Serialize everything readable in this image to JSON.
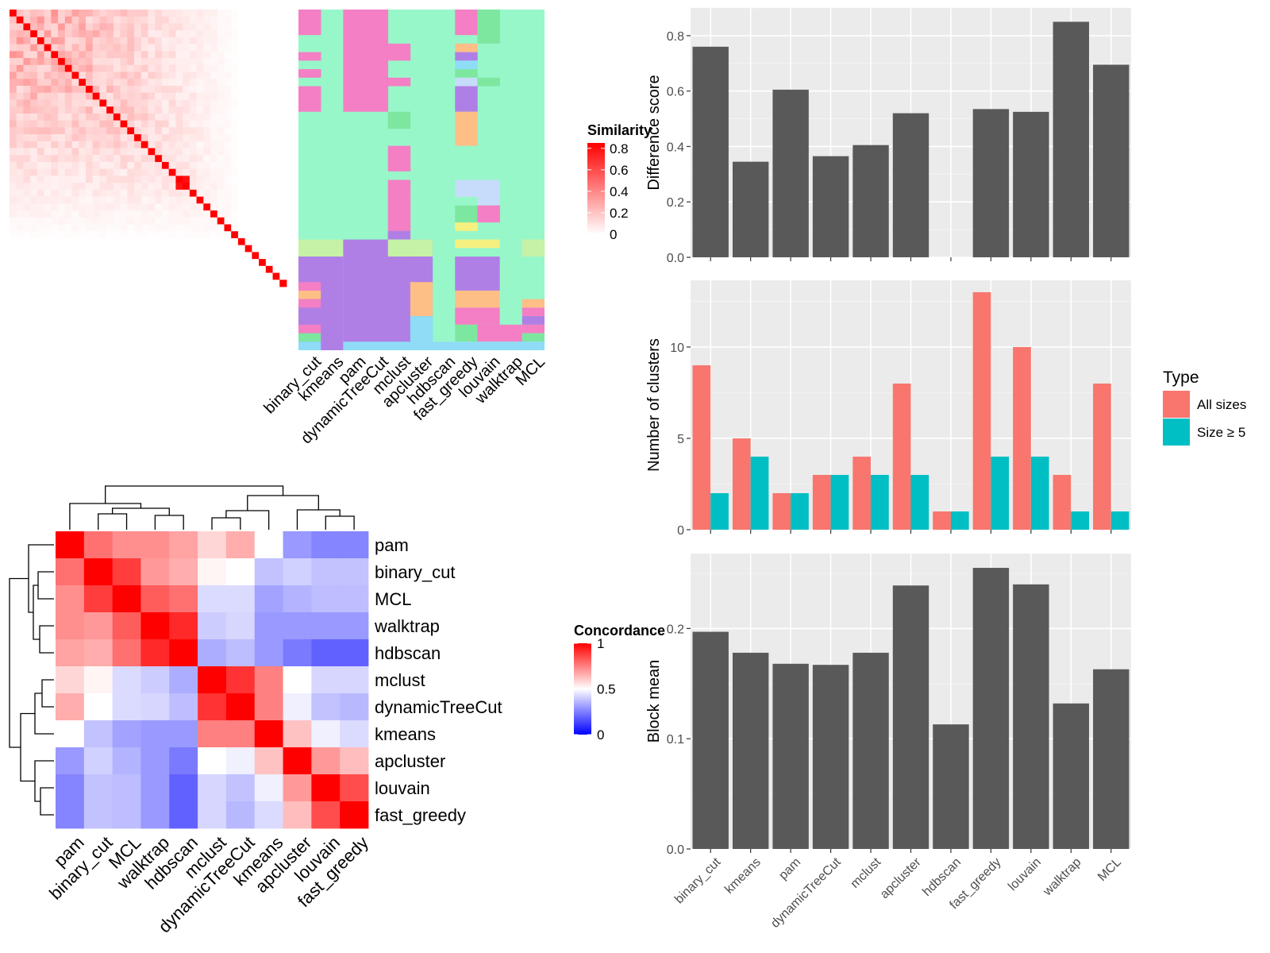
{
  "chart_data": [
    {
      "type": "heatmap",
      "panel": "similarity-heatmap",
      "legend_title": "Similarity",
      "legend_ticks": [
        "0",
        "0.2",
        "0.4",
        "0.6",
        "0.8"
      ],
      "legend_range": [
        0,
        0.85
      ],
      "n_terms": 40,
      "annotation_columns": [
        "binary_cut",
        "kmeans",
        "pam",
        "dynamicTreeCut",
        "mclust",
        "apcluster",
        "hdbscan",
        "fast_greedy",
        "louvain",
        "walktrap",
        "MCL"
      ],
      "annotation_background": "#97f7c9",
      "annotation_palette": [
        "#97f7c9",
        "#f47fc4",
        "#b07fe6",
        "#fdbf86",
        "#7de7a0",
        "#c5f2a6",
        "#8fdcf7",
        "#c6dcfa",
        "#f5f07f",
        "#fd9eba"
      ]
    },
    {
      "type": "heatmap",
      "panel": "concordance-heatmap",
      "legend_title": "Concordance",
      "legend_ticks": [
        "0",
        "0.5",
        "1"
      ],
      "legend_range": [
        0,
        1
      ],
      "methods": [
        "pam",
        "binary_cut",
        "MCL",
        "walktrap",
        "hdbscan",
        "mclust",
        "dynamicTreeCut",
        "kmeans",
        "apcluster",
        "louvain",
        "fast_greedy"
      ],
      "values": [
        [
          1.0,
          0.78,
          0.72,
          0.72,
          0.68,
          0.58,
          0.66,
          0.5,
          0.3,
          0.26,
          0.26
        ],
        [
          0.78,
          1.0,
          0.88,
          0.7,
          0.66,
          0.52,
          0.5,
          0.38,
          0.41,
          0.38,
          0.38
        ],
        [
          0.72,
          0.88,
          1.0,
          0.82,
          0.78,
          0.43,
          0.43,
          0.32,
          0.35,
          0.37,
          0.37
        ],
        [
          0.72,
          0.7,
          0.82,
          1.0,
          0.92,
          0.4,
          0.42,
          0.3,
          0.3,
          0.3,
          0.3
        ],
        [
          0.68,
          0.66,
          0.78,
          0.92,
          1.0,
          0.34,
          0.37,
          0.3,
          0.24,
          0.19,
          0.19
        ],
        [
          0.58,
          0.52,
          0.43,
          0.4,
          0.34,
          1.0,
          0.9,
          0.75,
          0.5,
          0.42,
          0.42
        ],
        [
          0.66,
          0.5,
          0.43,
          0.42,
          0.37,
          0.9,
          1.0,
          0.75,
          0.47,
          0.38,
          0.36
        ],
        [
          0.5,
          0.38,
          0.32,
          0.3,
          0.3,
          0.75,
          0.75,
          1.0,
          0.62,
          0.47,
          0.43
        ],
        [
          0.3,
          0.41,
          0.35,
          0.3,
          0.24,
          0.5,
          0.47,
          0.62,
          1.0,
          0.7,
          0.63
        ],
        [
          0.26,
          0.38,
          0.37,
          0.3,
          0.19,
          0.42,
          0.38,
          0.47,
          0.7,
          1.0,
          0.85
        ],
        [
          0.26,
          0.38,
          0.37,
          0.3,
          0.19,
          0.42,
          0.36,
          0.43,
          0.63,
          0.85,
          1.0
        ]
      ]
    },
    {
      "type": "bar",
      "panel": "difference-score",
      "categories": [
        "binary_cut",
        "kmeans",
        "pam",
        "dynamicTreeCut",
        "mclust",
        "apcluster",
        "hdbscan",
        "fast_greedy",
        "louvain",
        "walktrap",
        "MCL"
      ],
      "values": [
        0.76,
        0.345,
        0.605,
        0.365,
        0.405,
        0.52,
        0,
        0.535,
        0.525,
        0.85,
        0.695
      ],
      "ylabel": "Difference score",
      "ylim": [
        0,
        0.9
      ],
      "yticks": [
        0.0,
        0.2,
        0.4,
        0.6,
        0.8
      ],
      "ytick_labels": [
        "0.0",
        "0.2",
        "0.4",
        "0.6",
        "0.8"
      ],
      "grid": true,
      "bar_color": "#595959"
    },
    {
      "type": "bar",
      "panel": "number-of-clusters",
      "categories": [
        "binary_cut",
        "kmeans",
        "pam",
        "dynamicTreeCut",
        "mclust",
        "apcluster",
        "hdbscan",
        "fast_greedy",
        "louvain",
        "walktrap",
        "MCL"
      ],
      "series": [
        {
          "name": "All sizes",
          "values": [
            9,
            5,
            2,
            3,
            4,
            8,
            1,
            13,
            10,
            3,
            8
          ],
          "color": "#f8766d"
        },
        {
          "name": "Size ≥ 5",
          "values": [
            2,
            4,
            2,
            3,
            3,
            3,
            1,
            4,
            4,
            1,
            1
          ],
          "color": "#00bfc4"
        }
      ],
      "ylabel": "Number of clusters",
      "ylim": [
        0,
        13.65
      ],
      "yticks": [
        0,
        5,
        10
      ],
      "ytick_labels": [
        "0",
        "5",
        "10"
      ],
      "legend_title": "Type",
      "legend_position": "right",
      "grid": true
    },
    {
      "type": "bar",
      "panel": "block-mean",
      "categories": [
        "binary_cut",
        "kmeans",
        "pam",
        "dynamicTreeCut",
        "mclust",
        "apcluster",
        "hdbscan",
        "fast_greedy",
        "louvain",
        "walktrap",
        "MCL"
      ],
      "values": [
        0.197,
        0.178,
        0.168,
        0.167,
        0.178,
        0.239,
        0.113,
        0.255,
        0.24,
        0.132,
        0.163
      ],
      "ylabel": "Block mean",
      "ylim": [
        0,
        0.268
      ],
      "yticks": [
        0.0,
        0.1,
        0.2
      ],
      "ytick_labels": [
        "0.0",
        "0.1",
        "0.2"
      ],
      "grid": true,
      "bar_color": "#595959"
    }
  ]
}
